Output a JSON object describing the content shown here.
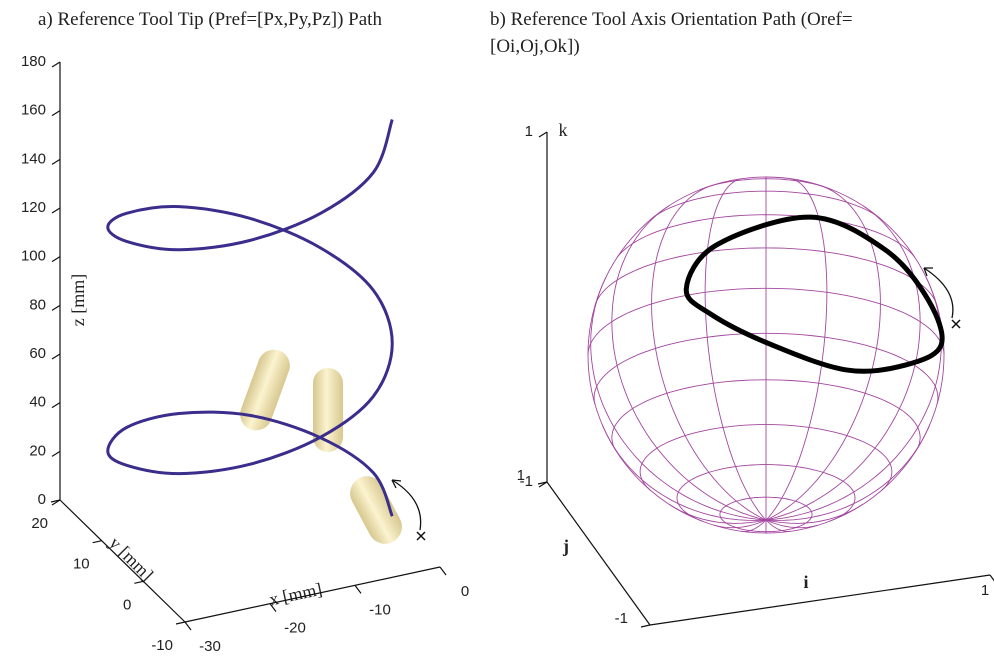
{
  "chart_data": [
    {
      "type": "line3d",
      "title": "a) Reference Tool Tip (Pref=[Px,Py,Pz]) Path",
      "x_label": "x [mm]",
      "y_label": "y [mm]",
      "z_label": "z [mm]",
      "xlim": [
        -30,
        0
      ],
      "ylim": [
        -10,
        20
      ],
      "zlim": [
        0,
        180
      ],
      "xticks": [
        -30,
        -20,
        -10,
        0
      ],
      "yticks": [
        -10,
        0,
        10,
        20
      ],
      "zticks": [
        0,
        20,
        40,
        60,
        80,
        100,
        120,
        140,
        160,
        180
      ],
      "series": [
        {
          "color": "#3a2d8c",
          "x": [
            -1.5,
            0,
            -2.6,
            -8.4,
            -16,
            -23.4,
            -28.5,
            -30,
            -27.4,
            -21.6,
            -14,
            -6.6,
            -1.5,
            0,
            -2.6,
            -8.4,
            -16,
            -23.4,
            -28.5,
            -30,
            -27.4,
            -21.6,
            -14,
            -6.6,
            -1.5
          ],
          "y": [
            -1.6,
            6,
            13.4,
            18.5,
            20,
            17.5,
            11.6,
            4,
            -3.4,
            -8.5,
            -10,
            -7.5,
            -1.6,
            6,
            13.4,
            18.5,
            20,
            17.5,
            11.6,
            4,
            -3.4,
            -8.5,
            -10,
            -7.5,
            -1.6
          ],
          "z": [
            8,
            12,
            16,
            21,
            25,
            29,
            33,
            41,
            48,
            56,
            64,
            71,
            79,
            87,
            94,
            102,
            110,
            117,
            125,
            133,
            140,
            148,
            156,
            163,
            171
          ]
        }
      ]
    },
    {
      "type": "sphere-path",
      "title": "b) Reference Tool Axis Orientation Path (Oref=[Oi,Oj,Ok])",
      "x_label": "i",
      "y_label": "j",
      "z_label": "k",
      "xlim": [
        -1,
        1
      ],
      "ylim": [
        -1,
        1
      ],
      "zlim": [
        -1,
        1
      ],
      "xticks": [
        1
      ],
      "yticks": [
        -1,
        1
      ],
      "zticks": [
        -1,
        1
      ],
      "sphere_color": "#a3479f",
      "series": [
        {
          "color": "#000000",
          "x": [
            -0.62,
            -0.42,
            0.13,
            0.55,
            0.8,
            0.87,
            0.56,
            0.17,
            -0.25,
            -0.53
          ],
          "y": [
            -0.45,
            -0.37,
            -0.39,
            -0.46,
            -0.46,
            -0.48,
            -0.8,
            -0.95,
            -0.86,
            -0.64
          ],
          "z": [
            0.64,
            0.83,
            0.92,
            0.7,
            0.38,
            0.12,
            0.18,
            0.27,
            0.44,
            0.56
          ]
        }
      ]
    }
  ]
}
